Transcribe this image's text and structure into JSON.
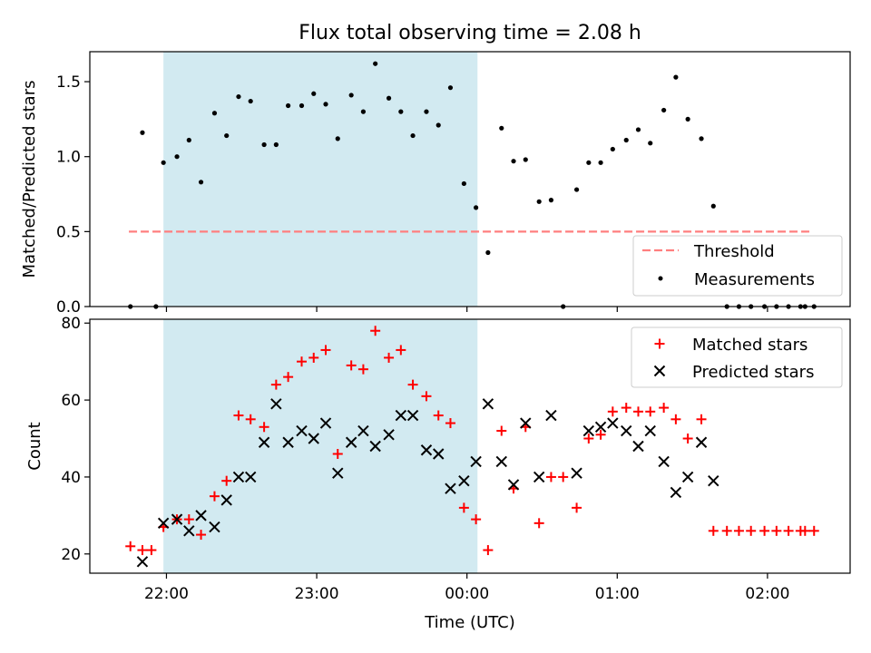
{
  "chart_data": {
    "type": "scatter",
    "title": "Flux total observing time = 2.08 h",
    "xlabel": "Time (UTC)",
    "x_ticks": [
      "22:00",
      "23:00",
      "00:00",
      "01:00",
      "02:00"
    ],
    "x_tick_hours": [
      22,
      23,
      24,
      25,
      26
    ],
    "x_range_hours": [
      21.49,
      26.55
    ],
    "shaded_interval_hours": [
      21.98,
      24.07
    ],
    "shade_color": "#add8e6",
    "top_panel": {
      "ylabel": "Matched/Predicted stars",
      "ylim": [
        0,
        1.7
      ],
      "y_ticks": [
        0.0,
        0.5,
        1.0,
        1.5
      ],
      "y_tick_labels": [
        "0.0",
        "0.5",
        "1.0",
        "1.5"
      ],
      "threshold": {
        "name": "Threshold",
        "value": 0.5,
        "x_range": [
          21.75,
          26.3
        ],
        "color": "#ff7f7f"
      },
      "legend_labels": [
        "Threshold",
        "Measurements"
      ],
      "legend_position": "lower right",
      "measurements": {
        "name": "Measurements",
        "color": "#000000",
        "x": [
          21.76,
          21.84,
          21.93,
          21.98,
          22.07,
          22.15,
          22.23,
          22.32,
          22.4,
          22.48,
          22.56,
          22.65,
          22.73,
          22.81,
          22.9,
          22.98,
          23.06,
          23.14,
          23.23,
          23.31,
          23.39,
          23.48,
          23.56,
          23.64,
          23.73,
          23.81,
          23.89,
          23.98,
          24.06,
          24.14,
          24.23,
          24.31,
          24.39,
          24.48,
          24.56,
          24.64,
          24.73,
          24.81,
          24.89,
          24.97,
          25.06,
          25.14,
          25.22,
          25.31,
          25.39,
          25.47,
          25.56,
          25.64,
          25.73,
          25.81,
          25.89,
          25.98,
          26.06,
          26.14,
          26.22,
          26.25,
          26.31
        ],
        "y": [
          0.0,
          1.16,
          0.0,
          0.96,
          1.0,
          1.11,
          0.83,
          1.29,
          1.14,
          1.4,
          1.37,
          1.08,
          1.08,
          1.34,
          1.34,
          1.42,
          1.35,
          1.12,
          1.41,
          1.3,
          1.62,
          1.39,
          1.3,
          1.14,
          1.3,
          1.21,
          1.46,
          0.82,
          0.66,
          0.36,
          1.19,
          0.97,
          0.98,
          0.7,
          0.71,
          0.0,
          0.78,
          0.96,
          0.96,
          1.05,
          1.11,
          1.18,
          1.09,
          1.31,
          1.53,
          1.25,
          1.12,
          0.67,
          0.0,
          0.0,
          0.0,
          0.0,
          0.0,
          0.0,
          0.0,
          0.0,
          0.0
        ]
      }
    },
    "bottom_panel": {
      "ylabel": "Count",
      "ylim": [
        15,
        81
      ],
      "y_ticks": [
        20,
        40,
        60,
        80
      ],
      "y_tick_labels": [
        "20",
        "40",
        "60",
        "80"
      ],
      "legend_labels": [
        "Matched stars",
        "Predicted stars"
      ],
      "legend_position": "upper right",
      "matched": {
        "name": "Matched stars",
        "color": "#ff0000",
        "x": [
          21.76,
          21.84,
          21.9,
          21.98,
          22.07,
          22.15,
          22.23,
          22.32,
          22.4,
          22.48,
          22.56,
          22.65,
          22.73,
          22.81,
          22.9,
          22.98,
          23.06,
          23.14,
          23.23,
          23.31,
          23.39,
          23.48,
          23.56,
          23.64,
          23.73,
          23.81,
          23.89,
          23.98,
          24.06,
          24.14,
          24.23,
          24.31,
          24.39,
          24.48,
          24.56,
          24.64,
          24.73,
          24.81,
          24.89,
          24.97,
          25.06,
          25.14,
          25.22,
          25.31,
          25.39,
          25.47,
          25.56,
          25.64,
          25.73,
          25.81,
          25.89,
          25.98,
          26.06,
          26.14,
          26.22,
          26.25,
          26.31
        ],
        "y": [
          22,
          21,
          21,
          27,
          29,
          29,
          25,
          35,
          39,
          56,
          55,
          53,
          64,
          66,
          70,
          71,
          73,
          46,
          69,
          68,
          78,
          71,
          73,
          64,
          61,
          56,
          54,
          32,
          29,
          21,
          52,
          37,
          53,
          28,
          40,
          40,
          32,
          50,
          51,
          57,
          58,
          57,
          57,
          58,
          55,
          50,
          55,
          26,
          26,
          26,
          26,
          26,
          26,
          26,
          26,
          26,
          26
        ]
      },
      "predicted": {
        "name": "Predicted stars",
        "color": "#000000",
        "x": [
          21.84,
          21.98,
          22.07,
          22.15,
          22.23,
          22.32,
          22.4,
          22.48,
          22.56,
          22.65,
          22.73,
          22.81,
          22.9,
          22.98,
          23.06,
          23.14,
          23.23,
          23.31,
          23.39,
          23.48,
          23.56,
          23.64,
          23.73,
          23.81,
          23.89,
          23.98,
          24.06,
          24.14,
          24.23,
          24.31,
          24.39,
          24.48,
          24.56,
          24.73,
          24.81,
          24.89,
          24.97,
          25.06,
          25.14,
          25.22,
          25.31,
          25.39,
          25.47,
          25.56,
          25.64
        ],
        "y": [
          18,
          28,
          29,
          26,
          30,
          27,
          34,
          40,
          40,
          49,
          59,
          49,
          52,
          50,
          54,
          41,
          49,
          52,
          48,
          51,
          56,
          56,
          47,
          46,
          37,
          39,
          44,
          59,
          44,
          38,
          54,
          40,
          56,
          41,
          52,
          53,
          54,
          52,
          48,
          52,
          44,
          36,
          40,
          49,
          39
        ]
      }
    }
  }
}
